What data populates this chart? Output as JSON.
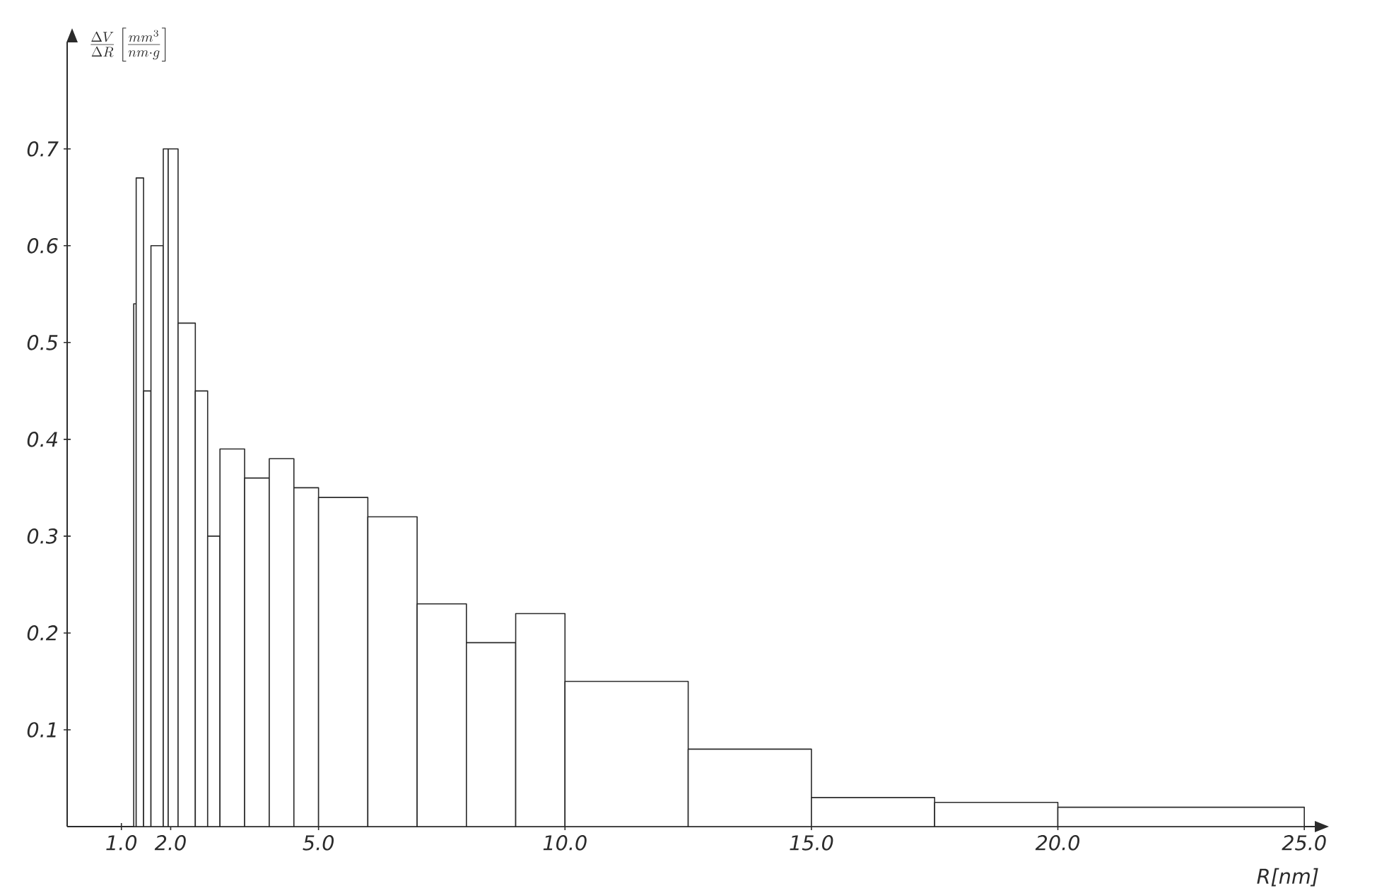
{
  "chart_data": {
    "type": "histogram",
    "ylabel": "\\frac{\\Delta V}{\\Delta R}\\left[\\frac{mm^{3}}{nm\\cdot g}\\right]",
    "xlabel": "R[nm]",
    "bins": [
      1.25,
      1.3,
      1.45,
      1.6,
      1.85,
      1.95,
      2.15,
      2.5,
      2.75,
      3.0,
      3.5,
      4.0,
      4.5,
      5.0,
      6.0,
      7.0,
      8.0,
      9.0,
      10.0,
      12.5,
      15.0,
      17.5,
      20.0,
      25.0
    ],
    "values": [
      0.54,
      0.67,
      0.45,
      0.6,
      0.7,
      0.7,
      0.52,
      0.45,
      0.3,
      0.39,
      0.36,
      0.38,
      0.35,
      0.34,
      0.32,
      0.23,
      0.19,
      0.22,
      0.15,
      0.08,
      0.03,
      0.025,
      0.02
    ],
    "color": "#2b2b2b",
    "xlim": [
      -0.1,
      25.4
    ],
    "ylim": [
      0,
      0.81
    ],
    "xticks": [
      {
        "value": 1,
        "label": "1.0"
      },
      {
        "value": 2,
        "label": "2.0"
      },
      {
        "value": 5,
        "label": "5.0"
      },
      {
        "value": 10,
        "label": "10.0"
      },
      {
        "value": 15,
        "label": "15.0"
      },
      {
        "value": 20,
        "label": "20.0"
      },
      {
        "value": 25,
        "label": "25.0"
      }
    ],
    "yticks": [
      0.1,
      0.2,
      0.3,
      0.4,
      0.5,
      0.6,
      0.7
    ],
    "grid": false
  }
}
